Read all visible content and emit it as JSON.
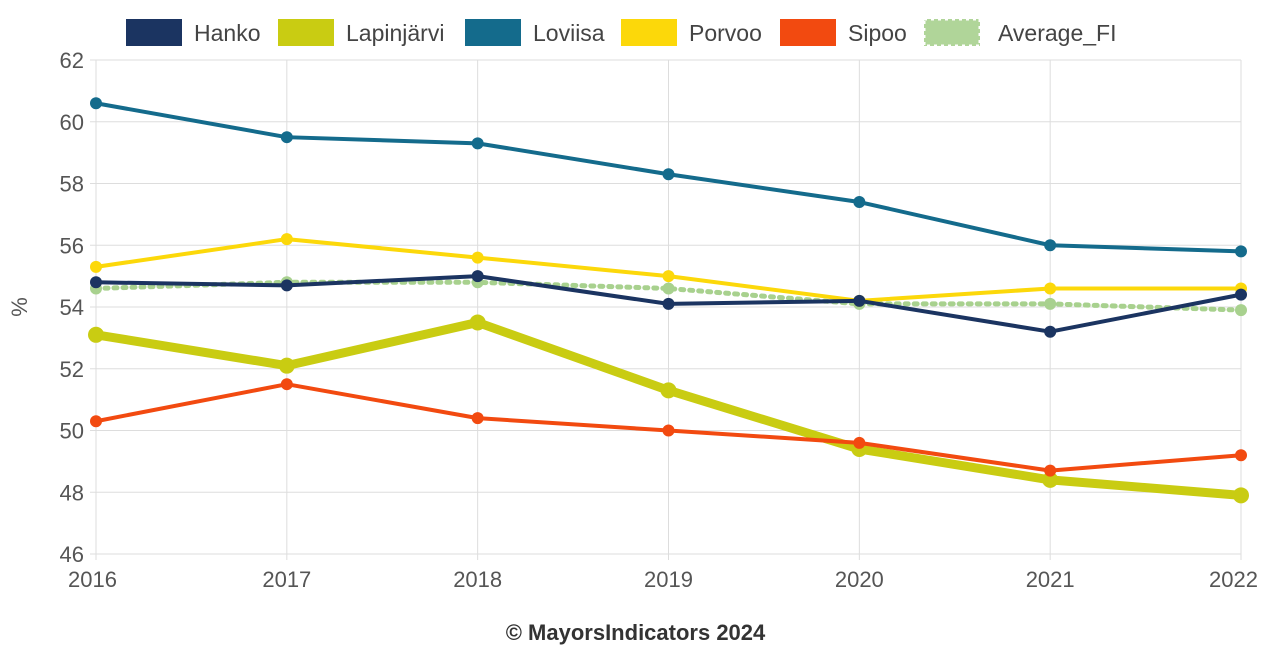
{
  "credit": "© MayorsIndicators 2024",
  "chart_data": {
    "type": "line",
    "title": "",
    "xlabel": "",
    "ylabel": "%",
    "x": [
      "2016",
      "2017",
      "2018",
      "2019",
      "2020",
      "2021",
      "2022"
    ],
    "ylim": [
      46,
      62
    ],
    "yticks": [
      "46",
      "48",
      "50",
      "52",
      "54",
      "56",
      "58",
      "60",
      "62"
    ],
    "grid": true,
    "legend_position": "top",
    "series": [
      {
        "name": "Hanko",
        "color": "#1b3461",
        "style": "solid",
        "weight": "normal",
        "values": [
          54.8,
          54.7,
          55.0,
          54.1,
          54.2,
          53.2,
          54.4
        ]
      },
      {
        "name": "Lapinjärvi",
        "color": "#c9cc12",
        "style": "solid",
        "weight": "thick",
        "values": [
          53.1,
          52.1,
          53.5,
          51.3,
          49.4,
          48.4,
          47.9
        ]
      },
      {
        "name": "Loviisa",
        "color": "#146b8c",
        "style": "solid",
        "weight": "normal",
        "values": [
          60.6,
          59.5,
          59.3,
          58.3,
          57.4,
          56.0,
          55.8
        ]
      },
      {
        "name": "Porvoo",
        "color": "#fcd80a",
        "style": "solid",
        "weight": "normal",
        "values": [
          55.3,
          56.2,
          55.6,
          55.0,
          54.2,
          54.6,
          54.6
        ]
      },
      {
        "name": "Sipoo",
        "color": "#f24a10",
        "style": "solid",
        "weight": "normal",
        "values": [
          50.3,
          51.5,
          50.4,
          50.0,
          49.6,
          48.7,
          49.2
        ]
      },
      {
        "name": "Average_FI",
        "color": "#a8d18e",
        "style": "dotted",
        "weight": "normal",
        "values": [
          54.6,
          54.8,
          54.8,
          54.6,
          54.1,
          54.1,
          53.9
        ]
      }
    ]
  }
}
